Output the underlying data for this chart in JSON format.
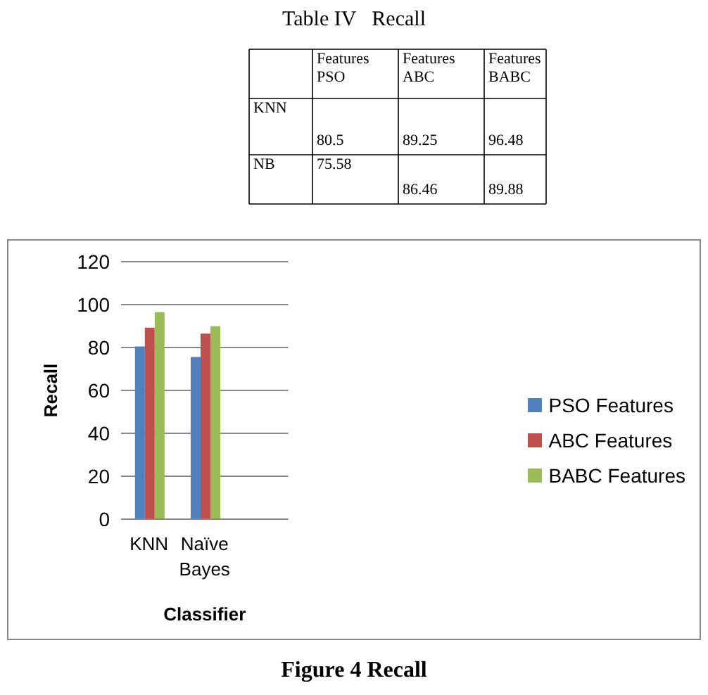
{
  "chart_data": [
    {
      "type": "other",
      "title": "Table IV   Recall",
      "annotations": [
        "Features PSO",
        "Features ABC",
        "Features BABC",
        "KNN",
        "80.5",
        "89.25",
        "96.48",
        "NB",
        "75.58",
        "86.46",
        "89.88"
      ]
    },
    {
      "type": "bar",
      "xlabel": "Classifier",
      "ylabel": "Recall",
      "categories": [
        "KNN",
        "Naïve Bayes",
        null
      ],
      "series": [
        {
          "name": "PSO Features",
          "color": "#4f81bd",
          "values": [
            80.5,
            75.58,
            null
          ]
        },
        {
          "name": "ABC Features",
          "color": "#c0504d",
          "values": [
            89.25,
            86.46,
            null
          ]
        },
        {
          "name": "BABC Features",
          "color": "#9bbb59",
          "values": [
            96.48,
            89.88,
            null
          ]
        }
      ],
      "ylim": [
        0,
        120
      ],
      "yticks": [
        0,
        20,
        40,
        60,
        80,
        100,
        120
      ],
      "grid": "y",
      "legend": "right",
      "annotations": [
        "Figure 4 Recall"
      ]
    }
  ]
}
